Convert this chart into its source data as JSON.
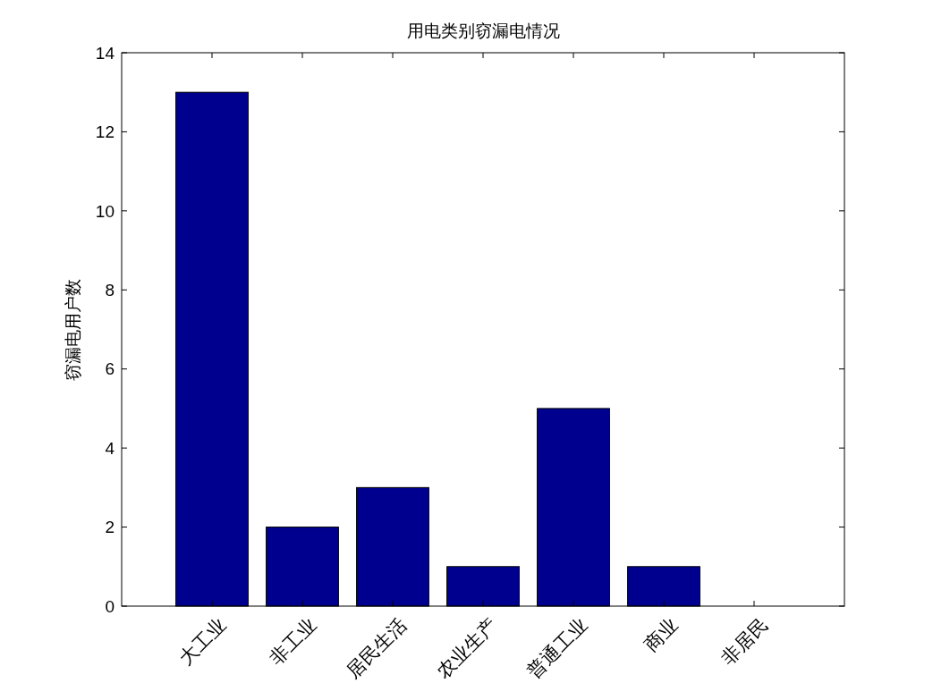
{
  "chart_data": {
    "type": "bar",
    "title": "用电类别窃漏电情况",
    "ylabel": "窃漏电用户数",
    "categories": [
      "大工业",
      "非工业",
      "居民生活",
      "农业生产",
      "普通工业",
      "商业",
      "非居民"
    ],
    "values": [
      13,
      2,
      3,
      1,
      5,
      1,
      0
    ],
    "color": "#00008f",
    "ylim": [
      0,
      14
    ],
    "yticks": [
      0,
      2,
      4,
      6,
      8,
      10,
      12,
      14
    ],
    "grid": false
  }
}
